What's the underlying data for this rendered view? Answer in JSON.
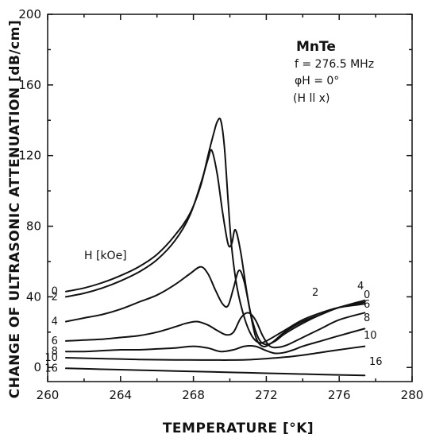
{
  "chart_data": {
    "type": "line",
    "xlabel": "TEMPERATURE [°K]",
    "ylabel": "CHANGE OF ULTRASONIC ATTENUATION [dB/cm]",
    "xlim": [
      260,
      280
    ],
    "ylim": [
      -8,
      200
    ],
    "xticks": [
      "260",
      "264",
      "268",
      "272",
      "276",
      "280"
    ],
    "yticks": [
      "0",
      "40",
      "80",
      "120",
      "160",
      "200"
    ],
    "grid": false,
    "annotations": [
      "MnTe",
      "f = 276.5 MHz",
      "φH = 0°",
      "(H ll x)",
      "H [kOe]"
    ],
    "series": [
      {
        "name": "0",
        "x": [
          261,
          262,
          263,
          264,
          265,
          266,
          267,
          267.8,
          268.4,
          268.8,
          269.1,
          269.3,
          269.5,
          269.7,
          269.9,
          270.1,
          270.4,
          270.8,
          271.2,
          271.6,
          272,
          273,
          274,
          275,
          276,
          277.4
        ],
        "y": [
          43,
          45,
          48,
          52,
          57,
          64,
          75,
          87,
          103,
          120,
          132,
          139,
          140,
          125,
          95,
          68,
          45,
          28,
          18,
          14,
          15,
          21,
          27,
          31,
          34,
          36
        ]
      },
      {
        "name": "2",
        "x": [
          261,
          262,
          263,
          264,
          265,
          266,
          267,
          267.8,
          268.4,
          268.8,
          269,
          269.3,
          269.6,
          269.9,
          270.1,
          270.3,
          270.6,
          271,
          271.4,
          271.8,
          272.3,
          273,
          274,
          275,
          276,
          277.4
        ],
        "y": [
          40,
          42,
          45,
          49,
          54,
          61,
          72,
          86,
          104,
          118,
          123,
          110,
          88,
          70,
          70,
          78,
          65,
          38,
          18,
          12,
          14,
          20,
          26,
          30,
          34,
          37
        ]
      },
      {
        "name": "4",
        "x": [
          261,
          262,
          263,
          264,
          265,
          266,
          267,
          267.8,
          268.4,
          268.8,
          269.2,
          269.6,
          269.9,
          270.2,
          270.5,
          270.8,
          271.2,
          271.6,
          272,
          272.5,
          273,
          274,
          275,
          276,
          277.4
        ],
        "y": [
          26,
          28,
          30,
          33,
          37,
          41,
          47,
          53,
          57,
          53,
          44,
          36,
          35,
          45,
          55,
          48,
          28,
          16,
          13,
          15,
          19,
          25,
          30,
          34,
          38
        ]
      },
      {
        "name": "6",
        "x": [
          261,
          262,
          263,
          264,
          265,
          266,
          267,
          267.6,
          268.2,
          268.8,
          269.3,
          269.8,
          270.2,
          270.6,
          271,
          271.4,
          271.8,
          272.2,
          272.7,
          273.2,
          274,
          275,
          276,
          277.4
        ],
        "y": [
          15,
          15.5,
          16,
          17,
          18,
          20,
          23,
          25,
          26,
          24,
          21,
          18.5,
          20,
          28,
          31,
          27,
          18,
          12,
          11.5,
          13,
          17,
          22,
          27,
          31
        ]
      },
      {
        "name": "8",
        "x": [
          261,
          262,
          263,
          264,
          265,
          266,
          267,
          268,
          268.8,
          269.5,
          270.2,
          270.8,
          271.4,
          272,
          272.5,
          273,
          273.5,
          274,
          275,
          276,
          277.4
        ],
        "y": [
          9,
          9,
          9.5,
          10,
          10,
          10.5,
          11,
          12,
          11,
          9,
          10,
          12,
          12,
          9.5,
          8,
          8.5,
          10,
          12,
          15,
          18,
          22
        ]
      },
      {
        "name": "10",
        "x": [
          261,
          263,
          265,
          267,
          269,
          270,
          271,
          272,
          273,
          274,
          275,
          276,
          277.4
        ],
        "y": [
          5.5,
          5,
          4.5,
          4.3,
          4.2,
          4.2,
          4.4,
          5,
          5.8,
          7,
          8.5,
          10,
          12
        ]
      },
      {
        "name": "16",
        "x": [
          261,
          263,
          265,
          267,
          269,
          271,
          273,
          275,
          277.4
        ],
        "y": [
          -0.5,
          -1,
          -1.5,
          -2,
          -2.5,
          -3,
          -3.5,
          -4,
          -4.5
        ]
      }
    ]
  }
}
